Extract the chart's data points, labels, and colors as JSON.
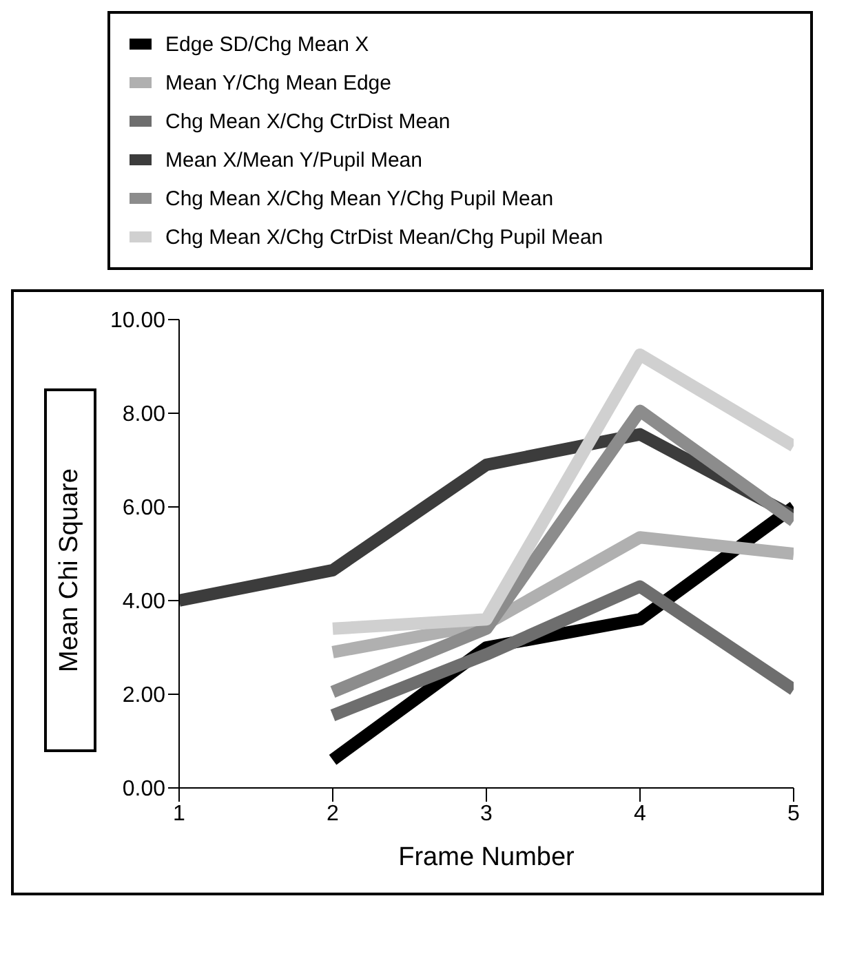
{
  "chart_data": {
    "type": "line",
    "xlabel": "Frame Number",
    "ylabel": "Mean Chi Square",
    "x": [
      1,
      2,
      3,
      4,
      5
    ],
    "xlim": [
      1,
      5
    ],
    "xticks": [
      1,
      2,
      3,
      4,
      5
    ],
    "ylim": [
      0,
      10
    ],
    "yticks": [
      {
        "value": 0,
        "label": "0.00"
      },
      {
        "value": 2,
        "label": "2.00"
      },
      {
        "value": 4,
        "label": "4.00"
      },
      {
        "value": 6,
        "label": "6.00"
      },
      {
        "value": 8,
        "label": "8.00"
      },
      {
        "value": 10,
        "label": "10.00"
      }
    ],
    "legend": "top",
    "grid": false,
    "marker": "none",
    "line_style": "solid",
    "series": [
      {
        "name": "Edge SD/Chg Mean X",
        "color": "#000000",
        "values": [
          null,
          0.6,
          3.0,
          3.6,
          6.0
        ]
      },
      {
        "name": "Mean Y/Chg Mean Edge",
        "color": "#b0b0b0",
        "values": [
          null,
          2.9,
          3.5,
          5.35,
          5.0
        ]
      },
      {
        "name": "Chg Mean X/Chg CtrDist Mean",
        "color": "#6e6e6e",
        "values": [
          null,
          1.55,
          2.85,
          4.3,
          2.1
        ]
      },
      {
        "name": "Mean X/Mean Y/Pupil Mean",
        "color": "#3c3c3c",
        "values": [
          4.0,
          4.65,
          6.9,
          7.55,
          5.8
        ]
      },
      {
        "name": "Chg Mean X/Chg Mean Y/Chg Pupil Mean",
        "color": "#8c8c8c",
        "values": [
          null,
          2.05,
          3.4,
          8.05,
          5.7
        ]
      },
      {
        "name": "Chg Mean X/Chg CtrDist Mean/Chg Pupil Mean",
        "color": "#d0d0d0",
        "values": [
          null,
          3.4,
          3.6,
          9.25,
          7.3
        ]
      }
    ]
  }
}
